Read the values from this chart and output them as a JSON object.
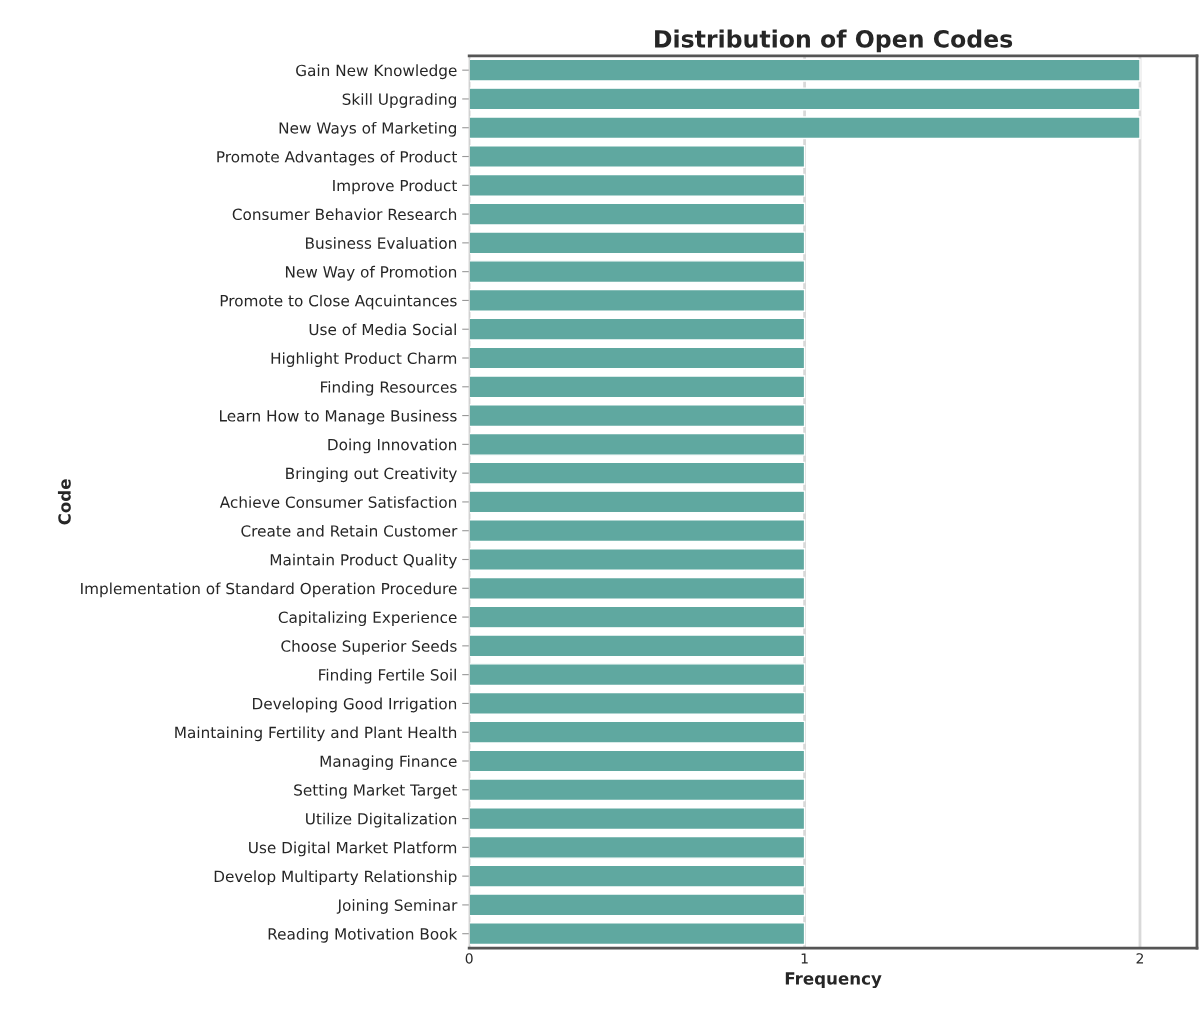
{
  "chart_data": {
    "type": "bar",
    "orientation": "horizontal",
    "title": "Distribution of Open Codes",
    "xlabel": "Frequency",
    "ylabel": "Code",
    "categories": [
      "Gain New Knowledge",
      "Skill Upgrading",
      "New Ways of Marketing",
      "Promote Advantages of Product",
      "Improve Product",
      "Consumer Behavior Research",
      "Business Evaluation",
      "New Way of Promotion",
      "Promote to Close Aqcuintances",
      "Use of Media Social",
      "Highlight Product Charm",
      "Finding Resources",
      "Learn How to Manage Business",
      "Doing Innovation",
      "Bringing out Creativity",
      "Achieve Consumer Satisfaction",
      "Create and Retain Customer",
      "Maintain Product Quality",
      "Implementation of Standard Operation Procedure",
      "Capitalizing Experience",
      "Choose Superior Seeds",
      "Finding Fertile Soil",
      "Developing Good Irrigation",
      "Maintaining Fertility and Plant Health",
      "Managing Finance",
      "Setting Market Target",
      "Utilize Digitalization",
      "Use Digital Market Platform",
      "Develop Multiparty Relationship",
      "Joining Seminar",
      "Reading Motivation Book"
    ],
    "values": [
      2,
      2,
      2,
      1,
      1,
      1,
      1,
      1,
      1,
      1,
      1,
      1,
      1,
      1,
      1,
      1,
      1,
      1,
      1,
      1,
      1,
      1,
      1,
      1,
      1,
      1,
      1,
      1,
      1,
      1,
      1
    ],
    "color": "#5fa8a0",
    "xlim": [
      0,
      2.17
    ],
    "xticks": [
      0,
      1,
      2
    ],
    "grid": "x",
    "legend": false
  }
}
